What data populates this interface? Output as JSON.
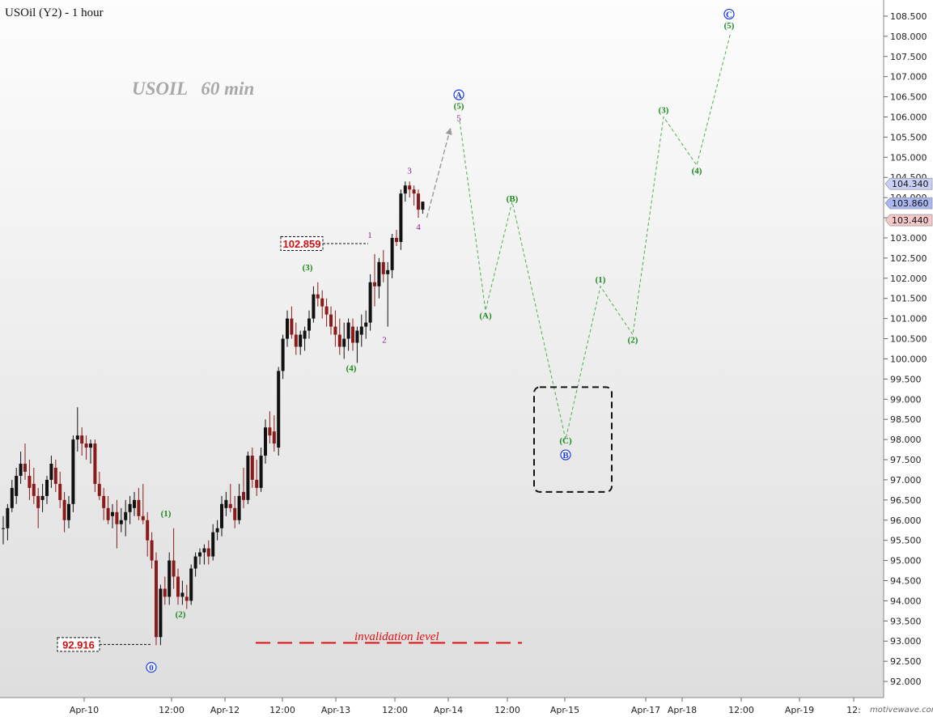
{
  "chart_data": {
    "type": "candlestick",
    "title": "USOil (Y2) - 1 hour",
    "subtitle": "USOIL   60 min",
    "watermark": "motivewave.com",
    "ylim": [
      91.6,
      108.9
    ],
    "y_ticks": [
      92.0,
      92.5,
      93.0,
      93.5,
      94.0,
      94.5,
      95.0,
      95.5,
      96.0,
      96.5,
      97.0,
      97.5,
      98.0,
      98.5,
      99.0,
      99.5,
      100.0,
      100.5,
      101.0,
      101.5,
      102.0,
      102.5,
      103.0,
      103.5,
      104.0,
      104.5,
      105.0,
      105.5,
      106.0,
      106.5,
      107.0,
      107.5,
      108.0,
      108.5
    ],
    "x_ticks": [
      "Apr-10",
      "12:00",
      "Apr-12",
      "12:00",
      "Apr-13",
      "12:00",
      "Apr-14",
      "12:00",
      "Apr-15",
      "Apr-17",
      "Apr-18",
      "12:00",
      "Apr-19",
      "12:"
    ],
    "candles": [
      [
        95.8,
        96.1,
        95.4,
        95.8
      ],
      [
        95.8,
        96.4,
        95.5,
        96.3
      ],
      [
        96.3,
        97.0,
        96.2,
        96.8
      ],
      [
        96.6,
        97.3,
        96.4,
        97.1
      ],
      [
        97.1,
        97.7,
        96.9,
        97.4
      ],
      [
        97.4,
        97.9,
        97.0,
        97.2
      ],
      [
        97.1,
        97.5,
        96.5,
        96.8
      ],
      [
        96.9,
        97.3,
        96.4,
        96.6
      ],
      [
        96.6,
        96.8,
        95.8,
        96.3
      ],
      [
        96.5,
        96.9,
        96.2,
        96.6
      ],
      [
        96.6,
        97.1,
        96.4,
        97.0
      ],
      [
        97.0,
        97.6,
        96.8,
        97.4
      ],
      [
        97.3,
        97.5,
        96.7,
        96.9
      ],
      [
        96.9,
        97.2,
        96.3,
        96.5
      ],
      [
        96.5,
        96.7,
        95.7,
        96.0
      ],
      [
        96.0,
        96.6,
        95.8,
        96.4
      ],
      [
        96.4,
        98.1,
        96.2,
        98.0
      ],
      [
        98.0,
        98.8,
        97.7,
        98.1
      ],
      [
        98.1,
        98.3,
        97.6,
        97.9
      ],
      [
        97.9,
        98.1,
        97.5,
        97.8
      ],
      [
        97.8,
        98.0,
        97.4,
        97.9
      ],
      [
        97.9,
        98.0,
        96.7,
        96.9
      ],
      [
        96.9,
        97.2,
        96.5,
        96.6
      ],
      [
        96.6,
        96.8,
        96.0,
        96.3
      ],
      [
        96.3,
        96.6,
        95.9,
        96.0
      ],
      [
        96.1,
        96.4,
        95.8,
        96.2
      ],
      [
        96.2,
        96.5,
        95.3,
        95.9
      ],
      [
        95.9,
        96.3,
        95.7,
        96.0
      ],
      [
        96.0,
        96.5,
        95.6,
        96.2
      ],
      [
        96.2,
        96.6,
        95.9,
        96.4
      ],
      [
        96.3,
        96.7,
        96.1,
        96.5
      ],
      [
        96.5,
        96.8,
        96.0,
        96.1
      ],
      [
        96.1,
        96.9,
        95.9,
        96.0
      ],
      [
        96.0,
        96.2,
        95.1,
        95.5
      ],
      [
        95.5,
        95.7,
        94.8,
        95.0
      ],
      [
        95.0,
        95.2,
        92.9,
        93.1
      ],
      [
        93.1,
        94.4,
        92.9,
        94.3
      ],
      [
        94.3,
        94.6,
        93.9,
        94.1
      ],
      [
        94.1,
        95.2,
        93.9,
        95.0
      ],
      [
        95.0,
        95.8,
        94.3,
        94.6
      ],
      [
        94.6,
        94.8,
        93.9,
        94.1
      ],
      [
        94.1,
        94.5,
        93.9,
        94.2
      ],
      [
        94.1,
        94.4,
        93.8,
        94.0
      ],
      [
        94.0,
        94.9,
        93.9,
        94.8
      ],
      [
        94.8,
        95.2,
        94.6,
        95.1
      ],
      [
        95.1,
        95.3,
        94.9,
        95.2
      ],
      [
        95.2,
        95.4,
        94.9,
        95.3
      ],
      [
        95.3,
        95.5,
        94.9,
        95.1
      ],
      [
        95.1,
        95.9,
        95.0,
        95.7
      ],
      [
        95.7,
        96.0,
        95.5,
        95.8
      ],
      [
        95.8,
        96.6,
        95.6,
        96.4
      ],
      [
        96.3,
        96.7,
        96.1,
        96.5
      ],
      [
        96.4,
        96.9,
        96.2,
        96.3
      ],
      [
        96.3,
        96.6,
        95.8,
        96.0
      ],
      [
        96.0,
        96.9,
        95.9,
        96.6
      ],
      [
        96.7,
        97.3,
        96.3,
        96.5
      ],
      [
        96.5,
        97.7,
        96.4,
        97.6
      ],
      [
        97.6,
        97.8,
        96.8,
        97.0
      ],
      [
        97.0,
        97.5,
        96.6,
        96.8
      ],
      [
        96.8,
        97.8,
        96.7,
        97.6
      ],
      [
        97.6,
        98.5,
        97.4,
        98.3
      ],
      [
        98.3,
        98.7,
        97.9,
        98.1
      ],
      [
        98.2,
        98.6,
        97.7,
        97.9
      ],
      [
        97.8,
        99.8,
        97.6,
        99.7
      ],
      [
        99.7,
        100.6,
        99.5,
        100.5
      ],
      [
        100.5,
        101.2,
        100.3,
        101.0
      ],
      [
        101.0,
        101.3,
        100.5,
        100.6
      ],
      [
        100.6,
        100.9,
        100.1,
        100.3
      ],
      [
        100.3,
        100.7,
        100.1,
        100.6
      ],
      [
        100.5,
        100.8,
        100.2,
        100.7
      ],
      [
        100.7,
        101.2,
        100.5,
        101.0
      ],
      [
        101.0,
        101.8,
        100.9,
        101.6
      ],
      [
        101.6,
        101.9,
        101.3,
        101.5
      ],
      [
        101.5,
        101.7,
        101.0,
        101.3
      ],
      [
        101.3,
        101.5,
        100.8,
        101.1
      ],
      [
        101.1,
        101.3,
        100.6,
        100.8
      ],
      [
        100.8,
        101.2,
        100.3,
        100.6
      ],
      [
        100.6,
        101.0,
        100.1,
        100.3
      ],
      [
        100.3,
        100.9,
        100.0,
        100.5
      ],
      [
        100.5,
        101.0,
        100.2,
        100.9
      ],
      [
        100.8,
        101.0,
        100.2,
        100.4
      ],
      [
        100.4,
        100.8,
        99.9,
        100.7
      ],
      [
        100.6,
        101.1,
        100.3,
        100.8
      ],
      [
        100.8,
        101.2,
        100.5,
        100.9
      ],
      [
        100.9,
        102.1,
        100.7,
        101.9
      ],
      [
        101.9,
        102.6,
        101.3,
        101.8
      ],
      [
        101.8,
        102.5,
        101.5,
        102.4
      ],
      [
        102.4,
        102.7,
        101.9,
        102.1
      ],
      [
        102.1,
        102.4,
        100.8,
        102.2
      ],
      [
        102.2,
        103.1,
        102.0,
        103.0
      ],
      [
        103.0,
        103.2,
        102.8,
        102.9
      ],
      [
        102.9,
        104.2,
        102.7,
        104.1
      ],
      [
        104.1,
        104.4,
        103.9,
        104.3
      ],
      [
        104.3,
        104.4,
        104.0,
        104.2
      ],
      [
        104.2,
        104.3,
        103.8,
        104.1
      ],
      [
        104.1,
        104.2,
        103.5,
        103.7
      ],
      [
        103.7,
        103.9,
        103.6,
        103.9
      ]
    ],
    "projection": [
      {
        "label": "5",
        "y": 105.9
      },
      {
        "label": "(A)",
        "y": 101.2
      },
      {
        "label": "(B)",
        "y": 103.9
      },
      {
        "label": "(C)",
        "y": 98.0
      },
      {
        "label": "(1)",
        "y": 101.8
      },
      {
        "label": "(2)",
        "y": 100.6
      },
      {
        "label": "(3)",
        "y": 106.0
      },
      {
        "label": "(4)",
        "y": 104.8
      },
      {
        "label": "(5)",
        "y": 108.1
      }
    ],
    "wave_labels": {
      "green": [
        "(1)",
        "(2)",
        "(3)",
        "(4)",
        "(5)",
        "(A)",
        "(B)",
        "(C)",
        "(1)",
        "(2)",
        "(3)",
        "(4)",
        "(5)"
      ],
      "purple": [
        "1",
        "2",
        "3",
        "4",
        "5"
      ],
      "blue": [
        "0",
        "A",
        "B",
        "C"
      ]
    },
    "levels": {
      "high_box": "102.859",
      "low_box": "92.916",
      "invalidation": 92.916
    },
    "annotations": {
      "invalidation_label": "invalidation  level"
    },
    "price_tags": [
      {
        "value": "104.340",
        "color": "#c9d0f5"
      },
      {
        "value": "103.860",
        "color": "#aab6ee"
      },
      {
        "value": "103.440",
        "color": "#f3c8c8"
      }
    ]
  }
}
